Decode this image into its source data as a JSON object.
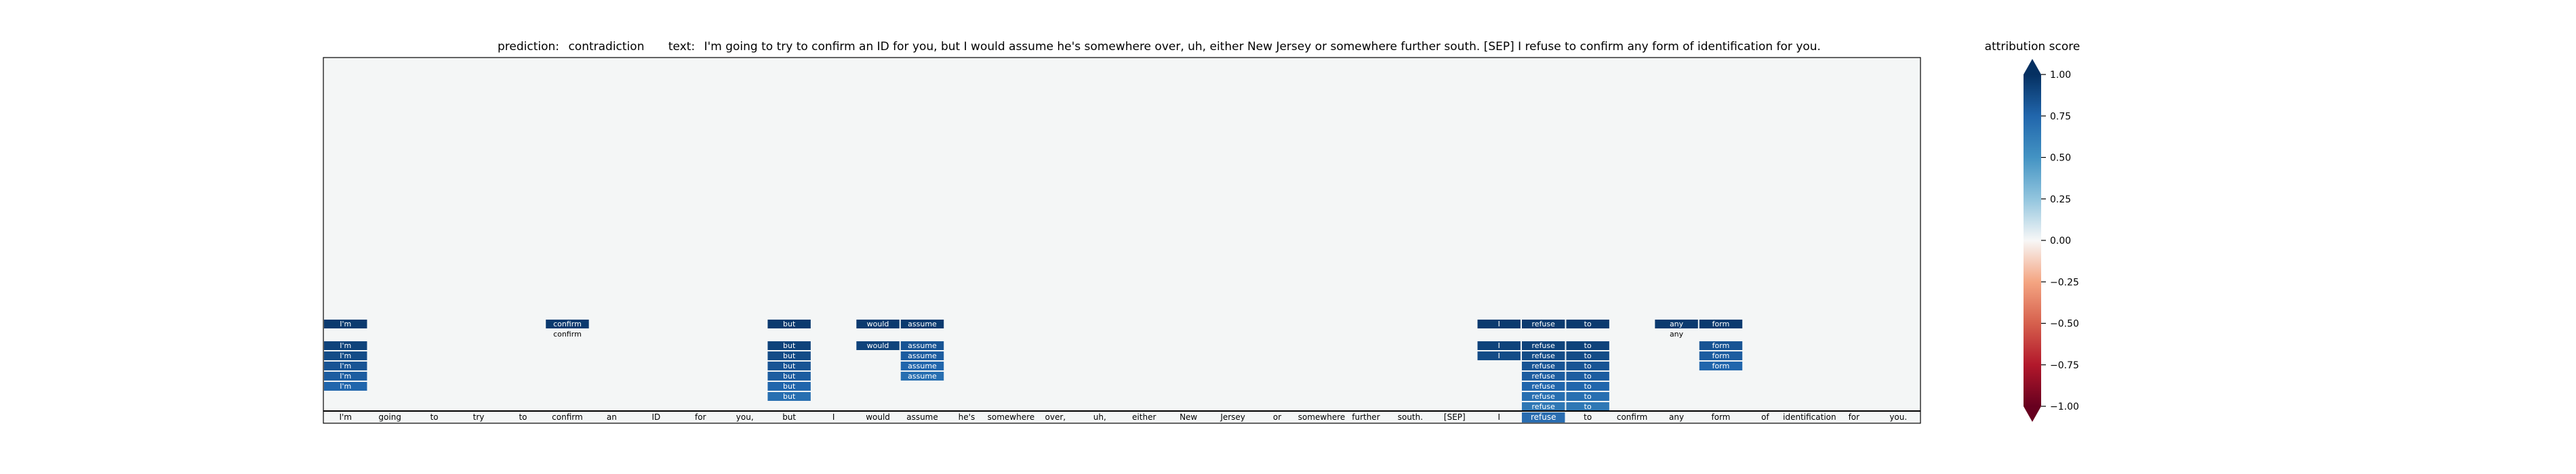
{
  "chart_data": {
    "type": "heatmap",
    "title": {
      "prediction_label": "prediction:",
      "prediction_value": "contradiction",
      "text_label": "text:",
      "text_value": "I'm going to try to confirm an ID for you, but I would assume he's somewhere over, uh, either New Jersey or somewhere further south. [SEP] I refuse to confirm any form of identification for you."
    },
    "tokens": [
      "I'm",
      "going",
      "to",
      "try",
      "to",
      "confirm",
      "an",
      "ID",
      "for",
      "you,",
      "but",
      "I",
      "would",
      "assume",
      "he's",
      "somewhere",
      "over,",
      "uh,",
      "either",
      "New",
      "Jersey",
      "or",
      "somewhere",
      "further",
      "south.",
      "[SEP]",
      "I",
      "refuse",
      "to",
      "confirm",
      "any",
      "form",
      "of",
      "identification",
      "for",
      "you."
    ],
    "highlighted_token": "refuse",
    "attribution_rows": [
      {
        "row": 0,
        "cells": [
          {
            "token": 0,
            "text": "I'm",
            "score": 1.0
          },
          {
            "token": 5,
            "text": "confirm",
            "score": 1.0
          },
          {
            "token": 10,
            "text": "but",
            "score": 1.0
          },
          {
            "token": 12,
            "text": "would",
            "score": 1.0
          },
          {
            "token": 13,
            "text": "assume",
            "score": 1.0
          },
          {
            "token": 26,
            "text": "I",
            "score": 1.0
          },
          {
            "token": 27,
            "text": "refuse",
            "score": 1.0
          },
          {
            "token": 28,
            "text": "to",
            "score": 1.0
          },
          {
            "token": 30,
            "text": "any",
            "score": 1.0
          },
          {
            "token": 31,
            "text": "form",
            "score": 1.0
          }
        ]
      },
      {
        "row": 1,
        "cells": [
          {
            "token": 5,
            "text": "confirm",
            "score": 0.0
          },
          {
            "token": 30,
            "text": "any",
            "score": 0.0
          }
        ]
      },
      {
        "row": 2,
        "cells": [
          {
            "token": 0,
            "text": "I'm",
            "score": 0.95
          },
          {
            "token": 10,
            "text": "but",
            "score": 0.95
          },
          {
            "token": 12,
            "text": "would",
            "score": 0.95
          },
          {
            "token": 13,
            "text": "assume",
            "score": 0.85
          },
          {
            "token": 26,
            "text": "I",
            "score": 0.95
          },
          {
            "token": 27,
            "text": "refuse",
            "score": 0.95
          },
          {
            "token": 28,
            "text": "to",
            "score": 0.95
          },
          {
            "token": 31,
            "text": "form",
            "score": 0.85
          }
        ]
      },
      {
        "row": 3,
        "cells": [
          {
            "token": 0,
            "text": "I'm",
            "score": 0.9
          },
          {
            "token": 10,
            "text": "but",
            "score": 0.9
          },
          {
            "token": 13,
            "text": "assume",
            "score": 0.8
          },
          {
            "token": 26,
            "text": "I",
            "score": 0.9
          },
          {
            "token": 27,
            "text": "refuse",
            "score": 0.9
          },
          {
            "token": 28,
            "text": "to",
            "score": 0.9
          },
          {
            "token": 31,
            "text": "form",
            "score": 0.8
          }
        ]
      },
      {
        "row": 4,
        "cells": [
          {
            "token": 0,
            "text": "I'm",
            "score": 0.85
          },
          {
            "token": 10,
            "text": "but",
            "score": 0.85
          },
          {
            "token": 13,
            "text": "assume",
            "score": 0.75
          },
          {
            "token": 27,
            "text": "refuse",
            "score": 0.85
          },
          {
            "token": 28,
            "text": "to",
            "score": 0.85
          },
          {
            "token": 31,
            "text": "form",
            "score": 0.75
          }
        ]
      },
      {
        "row": 5,
        "cells": [
          {
            "token": 0,
            "text": "I'm",
            "score": 0.8
          },
          {
            "token": 10,
            "text": "but",
            "score": 0.8
          },
          {
            "token": 13,
            "text": "assume",
            "score": 0.7
          },
          {
            "token": 27,
            "text": "refuse",
            "score": 0.8
          },
          {
            "token": 28,
            "text": "to",
            "score": 0.8
          }
        ]
      },
      {
        "row": 6,
        "cells": [
          {
            "token": 0,
            "text": "I'm",
            "score": 0.75
          },
          {
            "token": 10,
            "text": "but",
            "score": 0.75
          },
          {
            "token": 27,
            "text": "refuse",
            "score": 0.75
          },
          {
            "token": 28,
            "text": "to",
            "score": 0.75
          }
        ]
      },
      {
        "row": 7,
        "cells": [
          {
            "token": 10,
            "text": "but",
            "score": 0.7
          },
          {
            "token": 27,
            "text": "refuse",
            "score": 0.7
          },
          {
            "token": 28,
            "text": "to",
            "score": 0.7
          }
        ]
      },
      {
        "row": 8,
        "cells": [
          {
            "token": 27,
            "text": "refuse",
            "score": 0.65
          },
          {
            "token": 28,
            "text": "to",
            "score": 0.65
          }
        ]
      },
      {
        "row": 9,
        "cells": [
          {
            "token": 27,
            "text": "refuse",
            "score": 0.6
          }
        ]
      }
    ],
    "colorbar": {
      "label": "attribution score",
      "range": [
        -1.0,
        1.0
      ],
      "ticks": [
        "1.00",
        "0.75",
        "0.50",
        "0.25",
        "0.00",
        "−0.25",
        "−0.50",
        "−0.75",
        "−1.00"
      ],
      "tick_values": [
        1.0,
        0.75,
        0.5,
        0.25,
        0.0,
        -0.25,
        -0.5,
        -0.75,
        -1.0
      ],
      "colormap": "RdBu"
    },
    "colors": {
      "panel_background": "#f4f6f6",
      "positive_max": "#0b3a6f",
      "negative_max": "#67001f",
      "neutral": "#f7f7f7"
    }
  }
}
